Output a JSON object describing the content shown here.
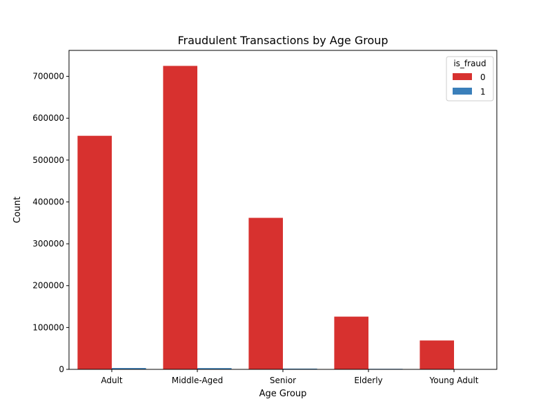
{
  "chart_data": {
    "type": "bar",
    "title": "Fraudulent Transactions by Age Group",
    "xlabel": "Age Group",
    "ylabel": "Count",
    "categories": [
      "Adult",
      "Middle-Aged",
      "Senior",
      "Elderly",
      "Young Adult"
    ],
    "series": [
      {
        "name": "0",
        "color": "#d7312f",
        "values": [
          558000,
          725000,
          362000,
          126000,
          69000
        ]
      },
      {
        "name": "1",
        "color": "#3a7fba",
        "values": [
          3200,
          3000,
          1800,
          1300,
          400
        ]
      }
    ],
    "ylim": [
      0,
      762000
    ],
    "yticks": [
      0,
      100000,
      200000,
      300000,
      400000,
      500000,
      600000,
      700000
    ],
    "ytick_labels": [
      "0",
      "100000",
      "200000",
      "300000",
      "400000",
      "500000",
      "600000",
      "700000"
    ],
    "grid": false,
    "legend": {
      "title": "is_fraud",
      "placement": "top-right"
    }
  }
}
